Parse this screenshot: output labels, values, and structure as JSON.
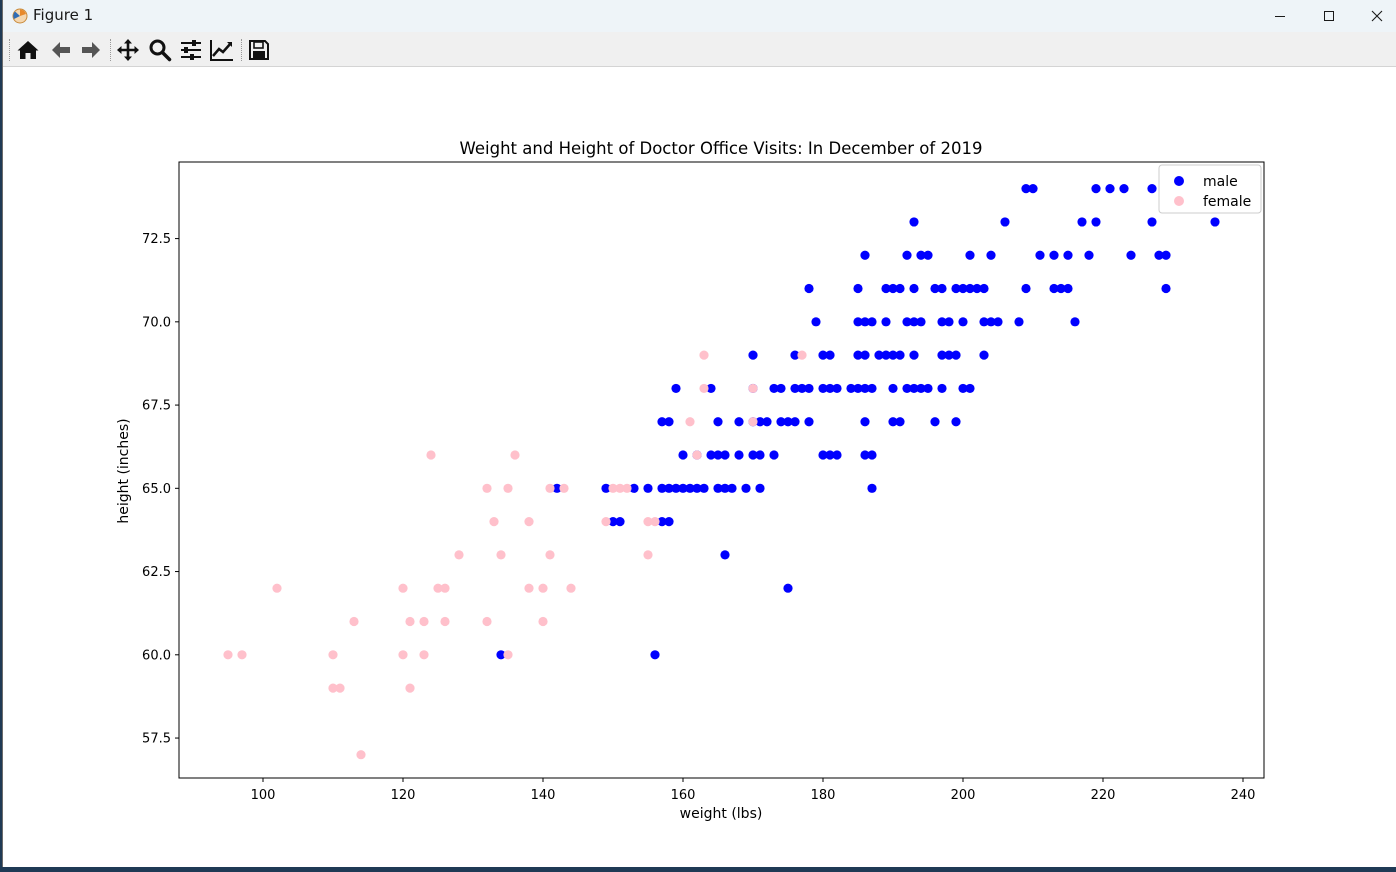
{
  "window": {
    "title": "Figure 1",
    "minimize_icon": "minimize-icon",
    "maximize_icon": "maximize-icon",
    "close_icon": "close-icon"
  },
  "toolbar": {
    "buttons": [
      {
        "name": "home-icon"
      },
      {
        "name": "back-arrow-icon"
      },
      {
        "name": "forward-arrow-icon"
      },
      {
        "name": "pan-icon"
      },
      {
        "name": "zoom-icon"
      },
      {
        "name": "configure-subplots-icon"
      },
      {
        "name": "edit-axis-icon"
      },
      {
        "name": "save-icon"
      }
    ]
  },
  "chart_data": {
    "type": "scatter",
    "title": "Weight and Height of Doctor Office Visits: In December of 2019",
    "xlabel": "weight (lbs)",
    "ylabel": "height (inches)",
    "xlim": [
      88,
      243
    ],
    "ylim": [
      56.3,
      74.8
    ],
    "xticks": [
      "100",
      "120",
      "140",
      "160",
      "180",
      "200",
      "220",
      "240"
    ],
    "yticks": [
      "57.5",
      "60.0",
      "62.5",
      "65.0",
      "67.5",
      "70.0",
      "72.5"
    ],
    "grid": false,
    "legend_position": "top-right",
    "series": [
      {
        "name": "male",
        "color": "#0000ff",
        "points": [
          [
            209,
            74
          ],
          [
            210,
            74
          ],
          [
            219,
            74
          ],
          [
            221,
            74
          ],
          [
            223,
            74
          ],
          [
            227,
            74
          ],
          [
            193,
            73
          ],
          [
            206,
            73
          ],
          [
            217,
            73
          ],
          [
            219,
            73
          ],
          [
            227,
            73
          ],
          [
            236,
            73
          ],
          [
            186,
            72
          ],
          [
            192,
            72
          ],
          [
            194,
            72
          ],
          [
            195,
            72
          ],
          [
            201,
            72
          ],
          [
            204,
            72
          ],
          [
            211,
            72
          ],
          [
            213,
            72
          ],
          [
            215,
            72
          ],
          [
            218,
            72
          ],
          [
            224,
            72
          ],
          [
            228,
            72
          ],
          [
            229,
            72
          ],
          [
            178,
            71
          ],
          [
            185,
            71
          ],
          [
            189,
            71
          ],
          [
            190,
            71
          ],
          [
            191,
            71
          ],
          [
            193,
            71
          ],
          [
            196,
            71
          ],
          [
            197,
            71
          ],
          [
            199,
            71
          ],
          [
            200,
            71
          ],
          [
            201,
            71
          ],
          [
            202,
            71
          ],
          [
            203,
            71
          ],
          [
            209,
            71
          ],
          [
            213,
            71
          ],
          [
            214,
            71
          ],
          [
            215,
            71
          ],
          [
            229,
            71
          ],
          [
            179,
            70
          ],
          [
            185,
            70
          ],
          [
            186,
            70
          ],
          [
            187,
            70
          ],
          [
            189,
            70
          ],
          [
            192,
            70
          ],
          [
            193,
            70
          ],
          [
            194,
            70
          ],
          [
            197,
            70
          ],
          [
            198,
            70
          ],
          [
            200,
            70
          ],
          [
            203,
            70
          ],
          [
            204,
            70
          ],
          [
            205,
            70
          ],
          [
            208,
            70
          ],
          [
            216,
            70
          ],
          [
            170,
            69
          ],
          [
            176,
            69
          ],
          [
            180,
            69
          ],
          [
            181,
            69
          ],
          [
            185,
            69
          ],
          [
            186,
            69
          ],
          [
            188,
            69
          ],
          [
            189,
            69
          ],
          [
            190,
            69
          ],
          [
            191,
            69
          ],
          [
            193,
            69
          ],
          [
            197,
            69
          ],
          [
            198,
            69
          ],
          [
            199,
            69
          ],
          [
            203,
            69
          ],
          [
            159,
            68
          ],
          [
            164,
            68
          ],
          [
            170,
            68
          ],
          [
            173,
            68
          ],
          [
            174,
            68
          ],
          [
            176,
            68
          ],
          [
            177,
            68
          ],
          [
            178,
            68
          ],
          [
            180,
            68
          ],
          [
            181,
            68
          ],
          [
            182,
            68
          ],
          [
            184,
            68
          ],
          [
            185,
            68
          ],
          [
            186,
            68
          ],
          [
            187,
            68
          ],
          [
            190,
            68
          ],
          [
            192,
            68
          ],
          [
            193,
            68
          ],
          [
            194,
            68
          ],
          [
            195,
            68
          ],
          [
            197,
            68
          ],
          [
            200,
            68
          ],
          [
            201,
            68
          ],
          [
            157,
            67
          ],
          [
            158,
            67
          ],
          [
            165,
            67
          ],
          [
            168,
            67
          ],
          [
            170,
            67
          ],
          [
            171,
            67
          ],
          [
            172,
            67
          ],
          [
            174,
            67
          ],
          [
            175,
            67
          ],
          [
            176,
            67
          ],
          [
            178,
            67
          ],
          [
            186,
            67
          ],
          [
            190,
            67
          ],
          [
            191,
            67
          ],
          [
            196,
            67
          ],
          [
            199,
            67
          ],
          [
            160,
            66
          ],
          [
            162,
            66
          ],
          [
            164,
            66
          ],
          [
            165,
            66
          ],
          [
            166,
            66
          ],
          [
            168,
            66
          ],
          [
            170,
            66
          ],
          [
            171,
            66
          ],
          [
            173,
            66
          ],
          [
            180,
            66
          ],
          [
            181,
            66
          ],
          [
            182,
            66
          ],
          [
            186,
            66
          ],
          [
            187,
            66
          ],
          [
            142,
            65
          ],
          [
            149,
            65
          ],
          [
            153,
            65
          ],
          [
            155,
            65
          ],
          [
            157,
            65
          ],
          [
            158,
            65
          ],
          [
            159,
            65
          ],
          [
            160,
            65
          ],
          [
            161,
            65
          ],
          [
            162,
            65
          ],
          [
            163,
            65
          ],
          [
            165,
            65
          ],
          [
            166,
            65
          ],
          [
            167,
            65
          ],
          [
            169,
            65
          ],
          [
            171,
            65
          ],
          [
            187,
            65
          ],
          [
            150,
            64
          ],
          [
            151,
            64
          ],
          [
            157,
            64
          ],
          [
            158,
            64
          ],
          [
            166,
            63
          ],
          [
            175,
            62
          ],
          [
            134,
            60
          ],
          [
            156,
            60
          ]
        ]
      },
      {
        "name": "female",
        "color": "#ffc0cb",
        "points": [
          [
            163,
            69
          ],
          [
            177,
            69
          ],
          [
            163,
            68
          ],
          [
            170,
            68
          ],
          [
            161,
            67
          ],
          [
            170,
            67
          ],
          [
            124,
            66
          ],
          [
            136,
            66
          ],
          [
            162,
            66
          ],
          [
            132,
            65
          ],
          [
            135,
            65
          ],
          [
            141,
            65
          ],
          [
            143,
            65
          ],
          [
            150,
            65
          ],
          [
            151,
            65
          ],
          [
            152,
            65
          ],
          [
            133,
            64
          ],
          [
            138,
            64
          ],
          [
            149,
            64
          ],
          [
            155,
            64
          ],
          [
            156,
            64
          ],
          [
            128,
            63
          ],
          [
            134,
            63
          ],
          [
            141,
            63
          ],
          [
            155,
            63
          ],
          [
            102,
            62
          ],
          [
            120,
            62
          ],
          [
            125,
            62
          ],
          [
            126,
            62
          ],
          [
            138,
            62
          ],
          [
            140,
            62
          ],
          [
            144,
            62
          ],
          [
            113,
            61
          ],
          [
            121,
            61
          ],
          [
            123,
            61
          ],
          [
            126,
            61
          ],
          [
            132,
            61
          ],
          [
            140,
            61
          ],
          [
            95,
            60
          ],
          [
            97,
            60
          ],
          [
            110,
            60
          ],
          [
            120,
            60
          ],
          [
            123,
            60
          ],
          [
            135,
            60
          ],
          [
            110,
            59
          ],
          [
            111,
            59
          ],
          [
            121,
            59
          ],
          [
            114,
            57
          ]
        ]
      }
    ]
  }
}
